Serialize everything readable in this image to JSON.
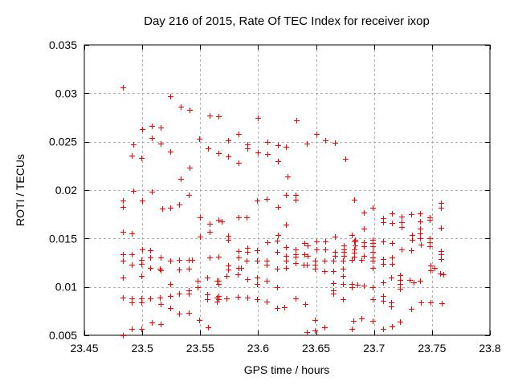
{
  "colors": {
    "background": "#ffffff",
    "marker": "#ff0000",
    "grid": "#b0b0b0",
    "border": "#000000",
    "text": "#000000"
  },
  "chart_data": {
    "type": "scatter",
    "title": "Day 216 of 2015, Rate Of TEC Index for receiver ixop",
    "xlabel": "GPS time / hours",
    "ylabel": "ROTI / TECUs",
    "xlim": [
      23.45,
      23.8
    ],
    "ylim": [
      0.005,
      0.035
    ],
    "xticks": [
      23.45,
      23.5,
      23.55,
      23.6,
      23.65,
      23.7,
      23.75,
      23.8
    ],
    "xtick_labels": [
      "23.45",
      "23.5",
      "23.55",
      "23.6",
      "23.65",
      "23.7",
      "23.75",
      "23.8"
    ],
    "yticks": [
      0.005,
      0.01,
      0.015,
      0.02,
      0.025,
      0.03,
      0.035
    ],
    "ytick_labels": [
      "0.005",
      "0.01",
      "0.015",
      "0.02",
      "0.025",
      "0.03",
      "0.035"
    ],
    "grid": true,
    "legend": "none",
    "marker": "plus",
    "points": [
      [
        23.483,
        0.0306
      ],
      [
        23.524,
        0.0297
      ],
      [
        23.533,
        0.0286
      ],
      [
        23.541,
        0.0283
      ],
      [
        23.558,
        0.0277
      ],
      [
        23.566,
        0.0276
      ],
      [
        23.5,
        0.0263
      ],
      [
        23.508,
        0.0266
      ],
      [
        23.516,
        0.0265
      ],
      [
        23.508,
        0.0254
      ],
      [
        23.492,
        0.0247
      ],
      [
        23.516,
        0.0248
      ],
      [
        23.524,
        0.024
      ],
      [
        23.491,
        0.0236
      ],
      [
        23.499,
        0.0233
      ],
      [
        23.549,
        0.0253
      ],
      [
        23.557,
        0.0243
      ],
      [
        23.566,
        0.0238
      ],
      [
        23.541,
        0.0223
      ],
      [
        23.533,
        0.0212
      ],
      [
        23.492,
        0.0199
      ],
      [
        23.508,
        0.0198
      ],
      [
        23.6,
        0.0275
      ],
      [
        23.633,
        0.0272
      ],
      [
        23.583,
        0.0258
      ],
      [
        23.574,
        0.0251
      ],
      [
        23.65,
        0.0258
      ],
      [
        23.591,
        0.0247
      ],
      [
        23.591,
        0.0243
      ],
      [
        23.608,
        0.025
      ],
      [
        23.617,
        0.0246
      ],
      [
        23.624,
        0.0245
      ],
      [
        23.642,
        0.0248
      ],
      [
        23.658,
        0.0251
      ],
      [
        23.666,
        0.0249
      ],
      [
        23.574,
        0.0235
      ],
      [
        23.6,
        0.0239
      ],
      [
        23.608,
        0.0237
      ],
      [
        23.583,
        0.0228
      ],
      [
        23.617,
        0.023
      ],
      [
        23.675,
        0.0232
      ],
      [
        23.625,
        0.0214
      ],
      [
        23.483,
        0.0189
      ],
      [
        23.483,
        0.0183
      ],
      [
        23.5,
        0.0189
      ],
      [
        23.54,
        0.0195
      ],
      [
        23.517,
        0.0181
      ],
      [
        23.524,
        0.0182
      ],
      [
        23.532,
        0.0185
      ],
      [
        23.55,
        0.0172
      ],
      [
        23.558,
        0.0165
      ],
      [
        23.566,
        0.0169
      ],
      [
        23.483,
        0.0157
      ],
      [
        23.491,
        0.0155
      ],
      [
        23.558,
        0.0157
      ],
      [
        23.55,
        0.0152
      ],
      [
        23.5,
        0.0139
      ],
      [
        23.507,
        0.0138
      ],
      [
        23.483,
        0.0134
      ],
      [
        23.491,
        0.0134
      ],
      [
        23.483,
        0.0127
      ],
      [
        23.499,
        0.0128
      ],
      [
        23.507,
        0.013
      ],
      [
        23.516,
        0.013
      ],
      [
        23.524,
        0.0127
      ],
      [
        23.532,
        0.0128
      ],
      [
        23.54,
        0.0128
      ],
      [
        23.543,
        0.0128
      ],
      [
        23.558,
        0.013
      ],
      [
        23.566,
        0.0131
      ],
      [
        23.491,
        0.0123
      ],
      [
        23.499,
        0.0124
      ],
      [
        23.507,
        0.012
      ],
      [
        23.515,
        0.0119
      ],
      [
        23.5155,
        0.0117
      ],
      [
        23.532,
        0.0118
      ],
      [
        23.54,
        0.0119
      ],
      [
        23.483,
        0.011
      ],
      [
        23.499,
        0.0111
      ],
      [
        23.524,
        0.0103
      ],
      [
        23.548,
        0.0106
      ],
      [
        23.556,
        0.011
      ],
      [
        23.566,
        0.0106
      ],
      [
        23.566,
        0.0103
      ],
      [
        23.548,
        0.01
      ],
      [
        23.483,
        0.0089
      ],
      [
        23.491,
        0.0088
      ],
      [
        23.491,
        0.0084
      ],
      [
        23.499,
        0.0088
      ],
      [
        23.499,
        0.0084
      ],
      [
        23.507,
        0.0088
      ],
      [
        23.515,
        0.0089
      ],
      [
        23.516,
        0.0082
      ],
      [
        23.524,
        0.0091
      ],
      [
        23.524,
        0.0078
      ],
      [
        23.532,
        0.0093
      ],
      [
        23.54,
        0.0096
      ],
      [
        23.54,
        0.0093
      ],
      [
        23.556,
        0.0092
      ],
      [
        23.556,
        0.0087
      ],
      [
        23.566,
        0.0091
      ],
      [
        23.566,
        0.0087
      ],
      [
        23.532,
        0.0072
      ],
      [
        23.54,
        0.0073
      ],
      [
        23.549,
        0.0066
      ],
      [
        23.508,
        0.0063
      ],
      [
        23.516,
        0.0062
      ],
      [
        23.557,
        0.0058
      ],
      [
        23.491,
        0.0057
      ],
      [
        23.499,
        0.0057
      ],
      [
        23.483,
        0.005
      ],
      [
        23.599,
        0.0189
      ],
      [
        23.607,
        0.0191
      ],
      [
        23.617,
        0.0183
      ],
      [
        23.624,
        0.0195
      ],
      [
        23.632,
        0.0195
      ],
      [
        23.632,
        0.019
      ],
      [
        23.683,
        0.019
      ],
      [
        23.5685,
        0.0168
      ],
      [
        23.583,
        0.0172
      ],
      [
        23.59,
        0.0172
      ],
      [
        23.624,
        0.0164
      ],
      [
        23.617,
        0.0154
      ],
      [
        23.574,
        0.0153
      ],
      [
        23.574,
        0.0149
      ],
      [
        23.666,
        0.0152
      ],
      [
        23.681,
        0.0154
      ],
      [
        23.608,
        0.0146
      ],
      [
        23.6165,
        0.0148
      ],
      [
        23.624,
        0.0141
      ],
      [
        23.632,
        0.0139
      ],
      [
        23.65,
        0.0147
      ],
      [
        23.65,
        0.0139
      ],
      [
        23.658,
        0.0147
      ],
      [
        23.658,
        0.0139
      ],
      [
        23.64,
        0.0145
      ],
      [
        23.643,
        0.0143
      ],
      [
        23.674,
        0.0143
      ],
      [
        23.674,
        0.0139
      ],
      [
        23.683,
        0.0147
      ],
      [
        23.683,
        0.0139
      ],
      [
        23.666,
        0.0136
      ],
      [
        23.666,
        0.0132
      ],
      [
        23.674,
        0.0136
      ],
      [
        23.683,
        0.0135
      ],
      [
        23.583,
        0.0137
      ],
      [
        23.591,
        0.014
      ],
      [
        23.591,
        0.0136
      ],
      [
        23.599,
        0.0138
      ],
      [
        23.6165,
        0.0136
      ],
      [
        23.624,
        0.0132
      ],
      [
        23.632,
        0.0134
      ],
      [
        23.632,
        0.0131
      ],
      [
        23.64,
        0.0134
      ],
      [
        23.643,
        0.0132
      ],
      [
        23.583,
        0.013
      ],
      [
        23.59,
        0.0127
      ],
      [
        23.599,
        0.0127
      ],
      [
        23.683,
        0.0131
      ],
      [
        23.674,
        0.0132
      ],
      [
        23.607,
        0.0127
      ],
      [
        23.607,
        0.0123
      ],
      [
        23.624,
        0.0127
      ],
      [
        23.632,
        0.0125
      ],
      [
        23.639,
        0.0123
      ],
      [
        23.642,
        0.0123
      ],
      [
        23.649,
        0.0127
      ],
      [
        23.649,
        0.0123
      ],
      [
        23.657,
        0.0127
      ],
      [
        23.665,
        0.0127
      ],
      [
        23.673,
        0.0127
      ],
      [
        23.681,
        0.0128
      ],
      [
        23.574,
        0.0122
      ],
      [
        23.574,
        0.0118
      ],
      [
        23.583,
        0.012
      ],
      [
        23.585,
        0.012
      ],
      [
        23.616,
        0.0119
      ],
      [
        23.624,
        0.012
      ],
      [
        23.649,
        0.0119
      ],
      [
        23.657,
        0.0116
      ],
      [
        23.665,
        0.0116
      ],
      [
        23.673,
        0.0119
      ],
      [
        23.673,
        0.0111
      ],
      [
        23.5646,
        0.0106
      ],
      [
        23.573,
        0.0111
      ],
      [
        23.5826,
        0.0113
      ],
      [
        23.5904,
        0.0108
      ],
      [
        23.599,
        0.011
      ],
      [
        23.599,
        0.0103
      ],
      [
        23.607,
        0.0106
      ],
      [
        23.616,
        0.01
      ],
      [
        23.5646,
        0.0089
      ],
      [
        23.5646,
        0.0085
      ],
      [
        23.573,
        0.0088
      ],
      [
        23.5826,
        0.009
      ],
      [
        23.5904,
        0.0089
      ],
      [
        23.599,
        0.0087
      ],
      [
        23.607,
        0.0085
      ],
      [
        23.616,
        0.0078
      ],
      [
        23.6228,
        0.0079
      ],
      [
        23.632,
        0.0088
      ],
      [
        23.6406,
        0.0082
      ],
      [
        23.665,
        0.0104
      ],
      [
        23.673,
        0.0103
      ],
      [
        23.681,
        0.0103
      ],
      [
        23.681,
        0.01
      ],
      [
        23.665,
        0.0096
      ],
      [
        23.665,
        0.0093
      ],
      [
        23.673,
        0.0087
      ],
      [
        23.649,
        0.0066
      ],
      [
        23.682,
        0.0065
      ],
      [
        23.657,
        0.0058
      ],
      [
        23.642,
        0.0053
      ],
      [
        23.649,
        0.0055
      ],
      [
        23.681,
        0.0057
      ],
      [
        23.6915,
        0.0177
      ],
      [
        23.699,
        0.0182
      ],
      [
        23.7076,
        0.0171
      ],
      [
        23.7076,
        0.0167
      ],
      [
        23.7156,
        0.0176
      ],
      [
        23.7156,
        0.0166
      ],
      [
        23.724,
        0.0173
      ],
      [
        23.724,
        0.0167
      ],
      [
        23.724,
        0.0162
      ],
      [
        23.7323,
        0.0175
      ],
      [
        23.74,
        0.0176
      ],
      [
        23.74,
        0.0168
      ],
      [
        23.74,
        0.016
      ],
      [
        23.74,
        0.0155
      ],
      [
        23.748,
        0.0172
      ],
      [
        23.748,
        0.0169
      ],
      [
        23.7577,
        0.0187
      ],
      [
        23.7577,
        0.0182
      ],
      [
        23.7577,
        0.0161
      ],
      [
        23.6915,
        0.016
      ],
      [
        23.6835,
        0.0149
      ],
      [
        23.733,
        0.0154
      ],
      [
        23.733,
        0.0149
      ],
      [
        23.74,
        0.015
      ],
      [
        23.748,
        0.015
      ],
      [
        23.748,
        0.0146
      ],
      [
        23.6835,
        0.0147
      ],
      [
        23.6835,
        0.0143
      ],
      [
        23.6915,
        0.0146
      ],
      [
        23.6915,
        0.0142
      ],
      [
        23.699,
        0.0149
      ],
      [
        23.699,
        0.0145
      ],
      [
        23.699,
        0.0142
      ],
      [
        23.7076,
        0.0147
      ],
      [
        23.7156,
        0.0145
      ],
      [
        23.724,
        0.0139
      ],
      [
        23.7323,
        0.0138
      ],
      [
        23.7406,
        0.0144
      ],
      [
        23.748,
        0.0142
      ],
      [
        23.7577,
        0.0137
      ],
      [
        23.7577,
        0.0134
      ],
      [
        23.6915,
        0.0132
      ],
      [
        23.699,
        0.0136
      ],
      [
        23.699,
        0.013
      ],
      [
        23.7076,
        0.0129
      ],
      [
        23.7156,
        0.013
      ],
      [
        23.7577,
        0.0129
      ],
      [
        23.689,
        0.0128
      ],
      [
        23.699,
        0.0127
      ],
      [
        23.7156,
        0.0124
      ],
      [
        23.7076,
        0.0124
      ],
      [
        23.749,
        0.0122
      ],
      [
        23.752,
        0.012
      ],
      [
        23.749,
        0.0117
      ],
      [
        23.757,
        0.0114
      ],
      [
        23.76,
        0.0113
      ],
      [
        23.699,
        0.012
      ],
      [
        23.7145,
        0.011
      ],
      [
        23.7225,
        0.0112
      ],
      [
        23.7225,
        0.0107
      ],
      [
        23.731,
        0.0107
      ],
      [
        23.734,
        0.0105
      ],
      [
        23.74,
        0.0106
      ],
      [
        23.7076,
        0.0105
      ],
      [
        23.7225,
        0.0103
      ],
      [
        23.7225,
        0.0098
      ],
      [
        23.6856,
        0.0102
      ],
      [
        23.6915,
        0.0101
      ],
      [
        23.699,
        0.01
      ],
      [
        23.699,
        0.0087
      ],
      [
        23.7076,
        0.0091
      ],
      [
        23.7076,
        0.0086
      ],
      [
        23.7145,
        0.0084
      ],
      [
        23.7145,
        0.008
      ],
      [
        23.7323,
        0.0077
      ],
      [
        23.7406,
        0.0084
      ],
      [
        23.749,
        0.0084
      ],
      [
        23.7583,
        0.0083
      ],
      [
        23.689,
        0.0067
      ],
      [
        23.699,
        0.0065
      ],
      [
        23.7076,
        0.0057
      ],
      [
        23.7156,
        0.0059
      ],
      [
        23.7225,
        0.0064
      ]
    ]
  }
}
